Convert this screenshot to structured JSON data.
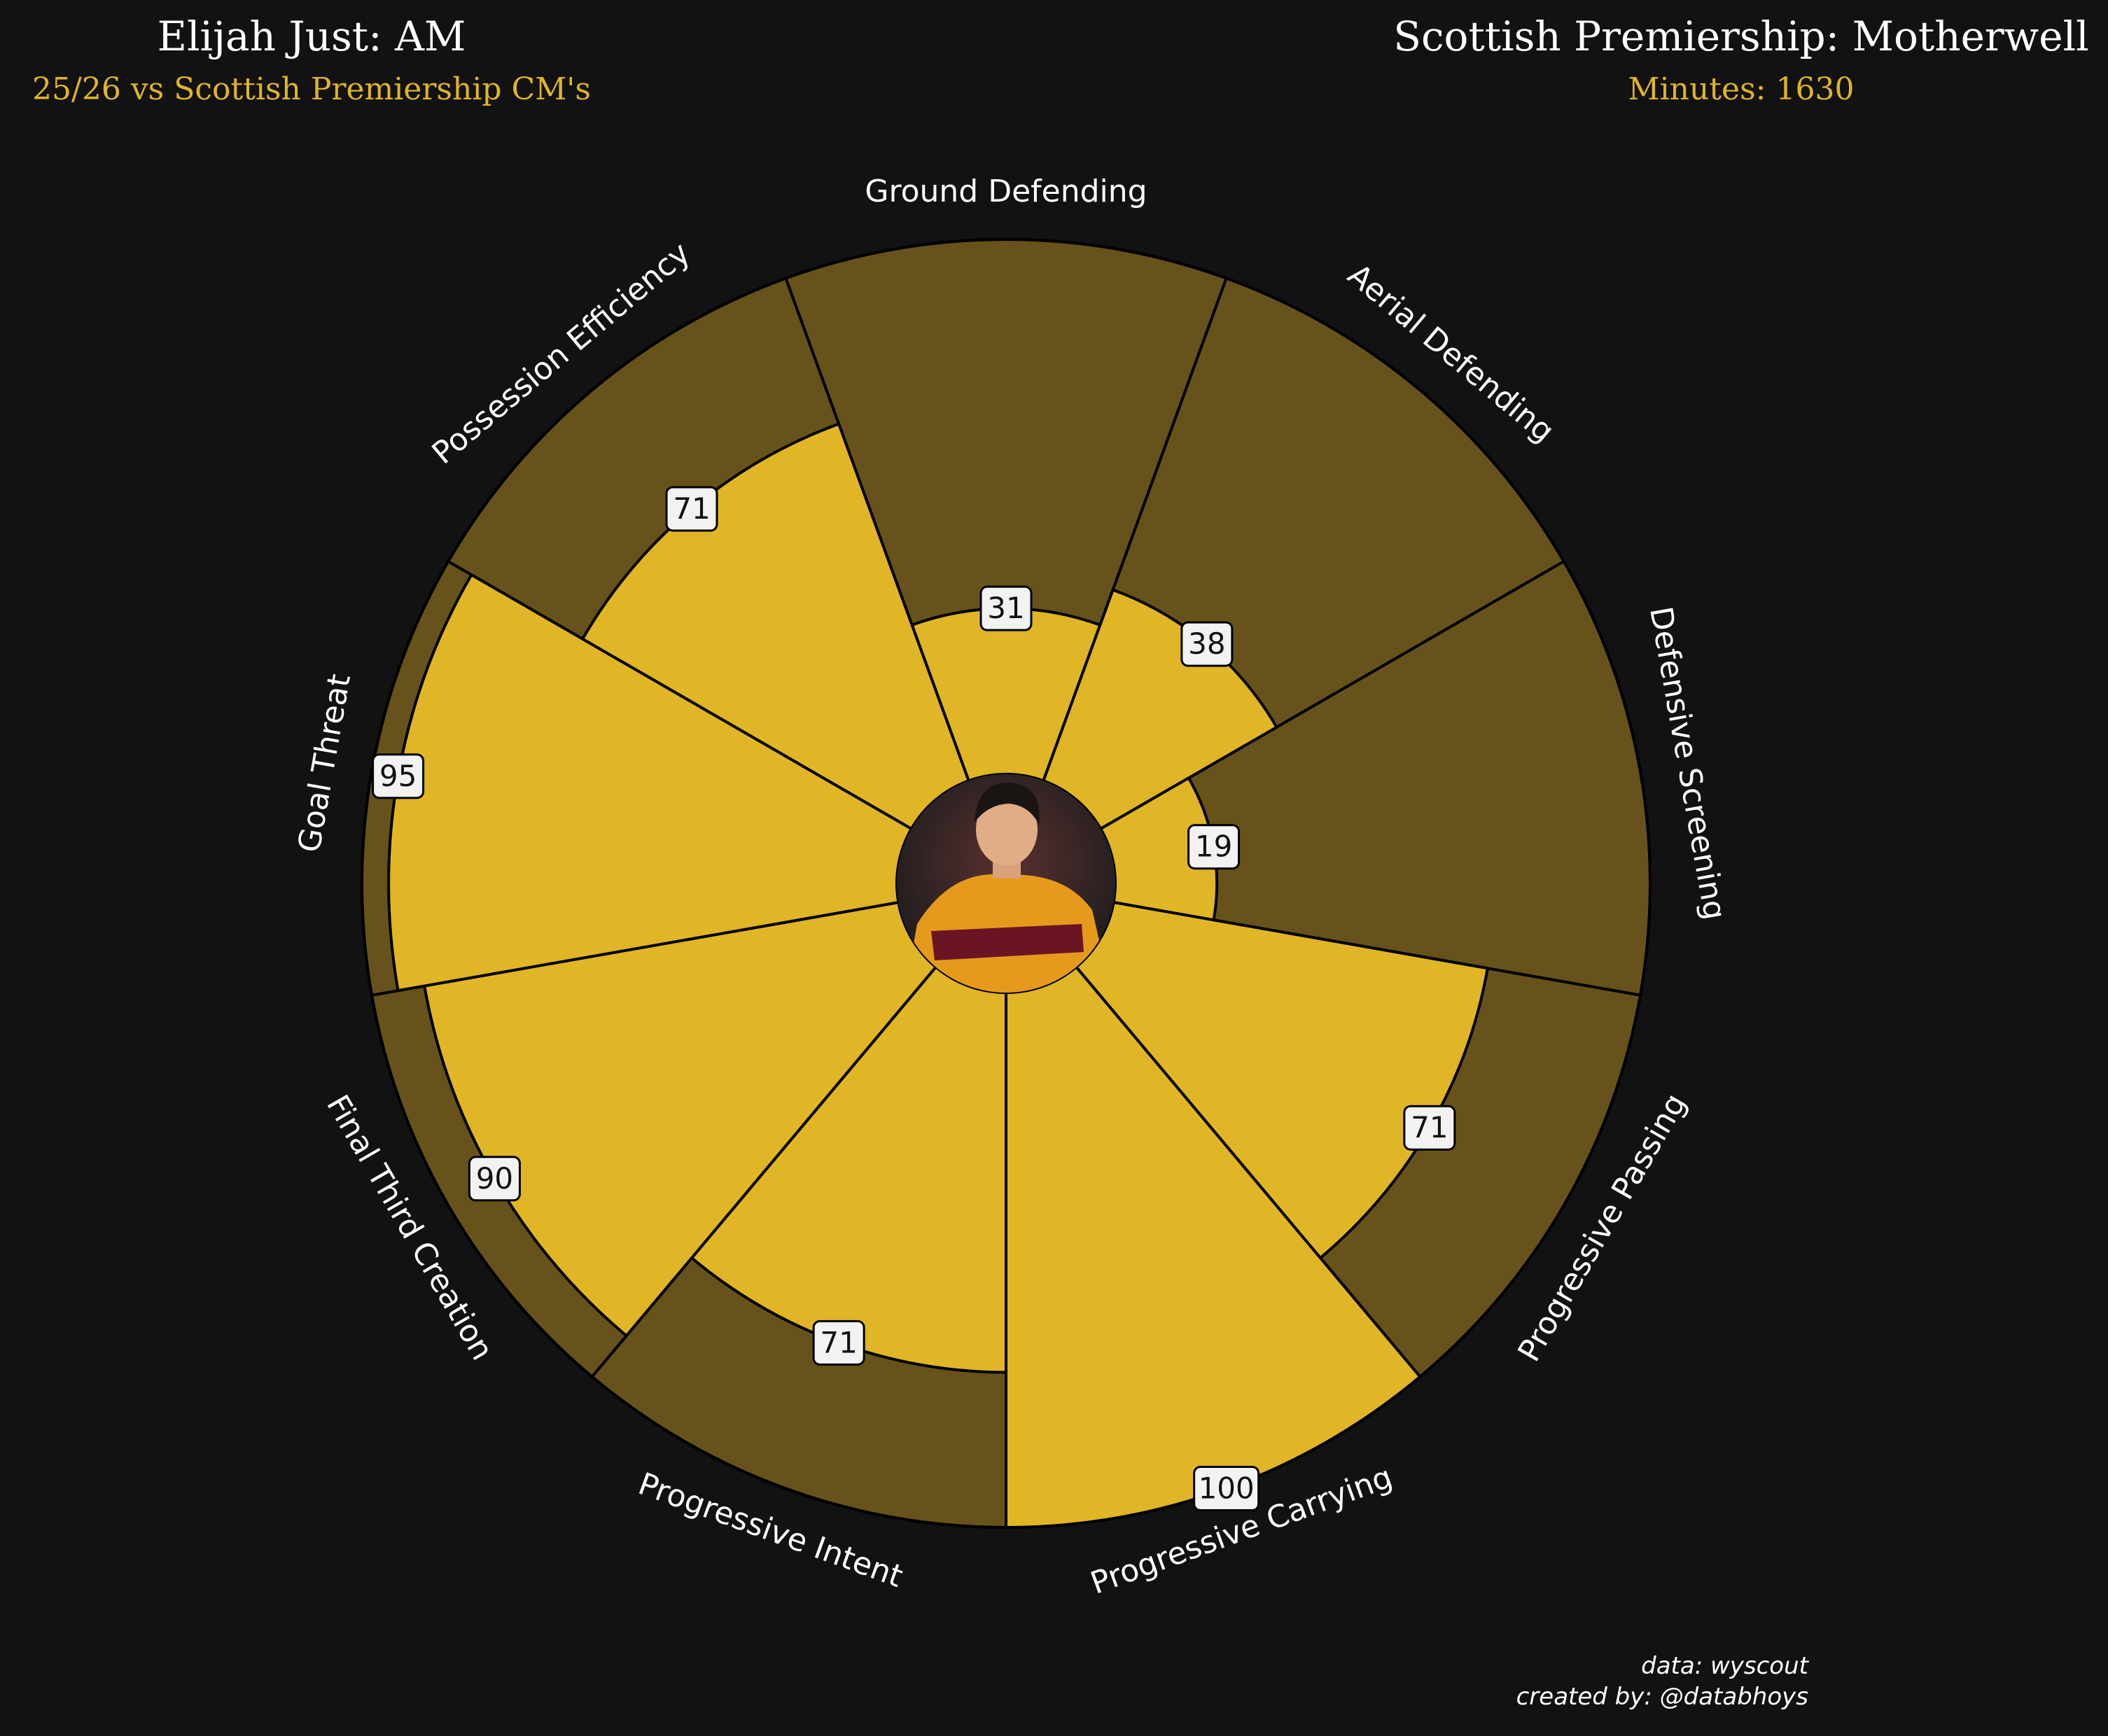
{
  "header": {
    "title_left": "Elijah Just: AM",
    "subtitle_left": "25/26 vs Scottish Premiership CM's",
    "title_right": "Scottish Premiership: Motherwell",
    "subtitle_right": "Minutes: 1630"
  },
  "credit": {
    "line1": "data: wyscout",
    "line2": "created by: @databhoys"
  },
  "colors": {
    "background": "#121212",
    "bar": "#e0b526",
    "bar_background": "#67521c",
    "edge": "#000000",
    "label_box": "#f2f2f2",
    "text": "#ffffff",
    "accent": "#e0b526"
  },
  "player_image": {
    "alt": "player-photo"
  },
  "chart_data": {
    "type": "pie",
    "subtype": "polar-bar (pizza)",
    "range": [
      0,
      100
    ],
    "categories": [
      "Ground Defending",
      "Aerial Defending",
      "Defensive Screening",
      "Progressive Passing",
      "Progressive Carrying",
      "Progressive Intent",
      "Final Third Creation",
      "Goal Threat",
      "Possession Efficiency"
    ],
    "values": [
      31,
      38,
      19,
      71,
      100,
      71,
      90,
      95,
      71
    ],
    "value_labels": [
      "31",
      "38",
      "19",
      "71",
      "100",
      "71",
      "90",
      "95",
      "71"
    ]
  }
}
